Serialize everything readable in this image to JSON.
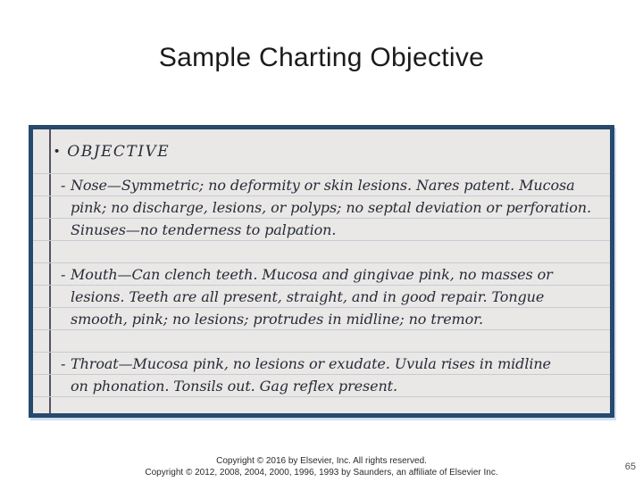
{
  "slide": {
    "title": "Sample Charting Objective",
    "page_number": "65",
    "footer": {
      "line1": "Copyright © 2016 by Elsevier, Inc. All rights reserved.",
      "line2": "Copyright © 2012, 2008, 2004, 2000, 1996, 1993 by Saunders, an affiliate of Elsevier Inc."
    }
  },
  "notebook": {
    "header": {
      "bullet": "•",
      "label": "OBJECTIVE"
    },
    "items": [
      {
        "name": "nose",
        "marker": "-",
        "lines": [
          "Nose—Symmetric; no deformity or skin lesions. Nares patent. Mucosa",
          "pink; no discharge, lesions, or polyps; no septal deviation or perforation.",
          "Sinuses—no tenderness to palpation."
        ]
      },
      {
        "name": "mouth",
        "marker": "-",
        "lines": [
          "Mouth—Can clench teeth. Mucosa and gingivae pink, no masses or",
          "lesions. Teeth are all present, straight, and in good repair. Tongue",
          "smooth, pink; no lesions; protrudes in midline; no tremor."
        ]
      },
      {
        "name": "throat",
        "marker": "-",
        "lines": [
          "Throat—Mucosa pink, no lesions or exudate. Uvula rises in midline",
          "on phonation. Tonsils out. Gag reflex present."
        ]
      }
    ],
    "colors": {
      "border": "#27496e",
      "paper": "#e9e8e6",
      "rule_line": "#c6cbd4",
      "margin_line": "#515560",
      "ink": "#272b38"
    }
  }
}
